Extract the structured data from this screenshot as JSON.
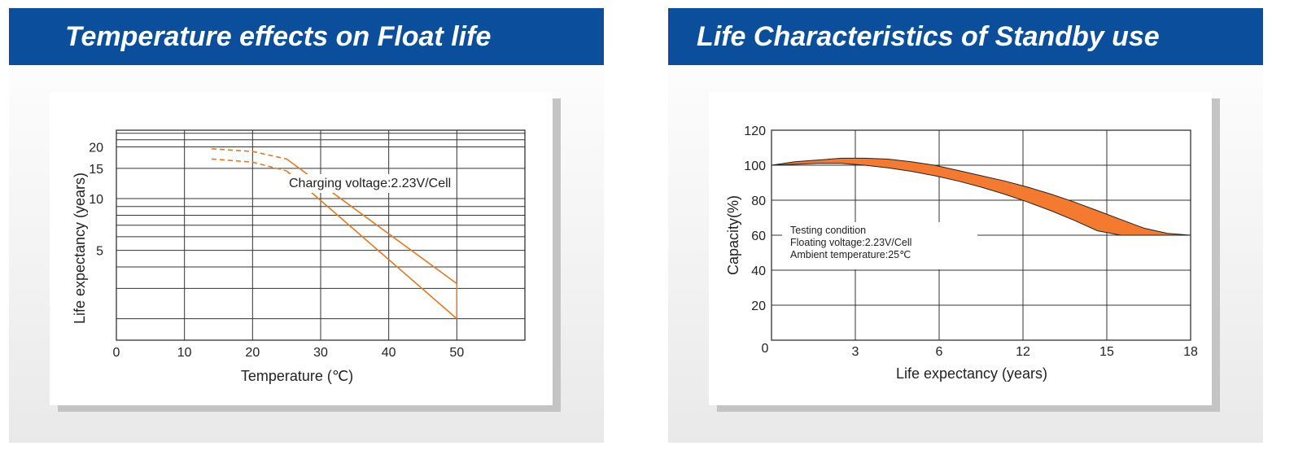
{
  "panels": {
    "left": {
      "title": "Temperature effects on Float life"
    },
    "right": {
      "title": "Life  Characteristics of Standby use"
    }
  },
  "colors": {
    "banner": "#0b4f9c",
    "float_line": "#e07a26",
    "standby_fill": "#f47a30",
    "grid": "#333333"
  },
  "chart_data": [
    {
      "type": "line",
      "xlabel": "Temperature (℃)",
      "ylabel": "Life expectancy (years)",
      "x_ticks": [
        "0",
        "10",
        "20",
        "30",
        "40",
        "50"
      ],
      "y_ticks": [
        "5",
        "10",
        "15",
        "20"
      ],
      "xlim": [
        0,
        60
      ],
      "ylim": [
        1.5,
        25
      ],
      "y_scale": "log",
      "annotation": "Charging voltage:2.23V/Cell",
      "series": [
        {
          "x": [
            14,
            20,
            25,
            50
          ],
          "y": [
            19.5,
            18.8,
            17.0,
            3.2
          ]
        },
        {
          "x": [
            14,
            20,
            25,
            50
          ],
          "y": [
            17.0,
            16.3,
            14.5,
            2.0
          ]
        }
      ],
      "dashed_until_x": 25,
      "grid": true
    },
    {
      "type": "area",
      "xlabel": "Life expectancy (years)",
      "ylabel": "Capacity(%)",
      "x_ticks": [
        "0",
        "3",
        "6",
        "12",
        "15",
        "18"
      ],
      "y_ticks": [
        "20",
        "40",
        "60",
        "80",
        "100",
        "120"
      ],
      "ylim": [
        0,
        120
      ],
      "annotation": [
        "Testing condition",
        "Floating voltage:2.23V/Cell",
        "Ambient temperature:25℃"
      ],
      "series": [
        {
          "x": [
            0,
            1,
            2,
            3,
            4,
            5,
            6,
            7,
            8,
            9,
            10,
            11,
            12,
            13,
            14,
            15,
            16,
            17,
            18
          ],
          "y": [
            100,
            102,
            103,
            104,
            104,
            103.5,
            102,
            100,
            97,
            94,
            91,
            87.5,
            83.5,
            79,
            74,
            69,
            64,
            61,
            60
          ]
        },
        {
          "x": [
            0,
            1,
            2,
            3,
            4,
            5,
            6,
            7,
            8,
            9,
            10,
            11,
            12,
            13,
            14,
            15,
            16,
            17,
            18
          ],
          "y": [
            100,
            100.5,
            101,
            101,
            100,
            98.5,
            96.5,
            94,
            91,
            87.5,
            83.5,
            79,
            74,
            68.5,
            62.5,
            60,
            60,
            60,
            60
          ]
        }
      ],
      "grid": true
    }
  ]
}
